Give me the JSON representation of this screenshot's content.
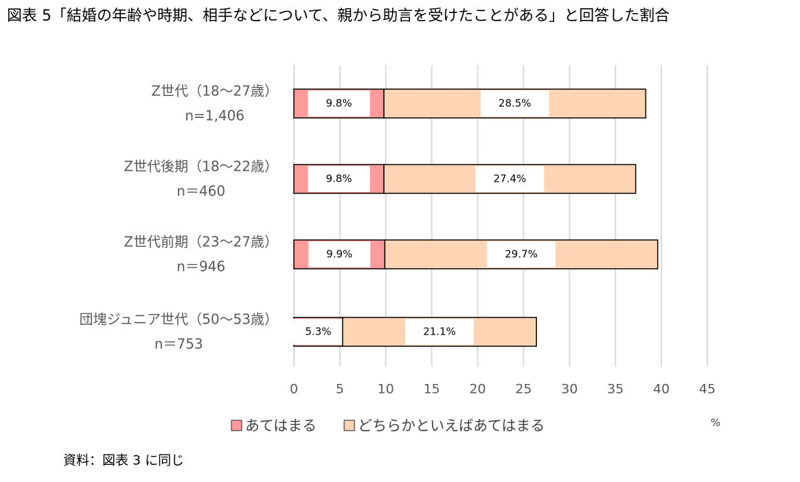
{
  "chart_data": {
    "type": "stacked-bar-horizontal",
    "title": "図表 5「結婚の年齢や時期、相手などについて、親から助言を受けたことがある」と回答した割合",
    "categories": [
      "Z世代（18～27歳）",
      "Z世代後期（18～22歳）",
      "Z世代前期（23～27歳）",
      "団塊ジュニア世代（50～53歳）"
    ],
    "sample_sizes": [
      "n=1,406",
      "n＝460",
      "n＝946",
      "n＝753"
    ],
    "series": [
      {
        "name": "あてはまる",
        "color": "#ff9b9b",
        "values": [
          9.8,
          9.8,
          9.9,
          5.3
        ],
        "value_labels": [
          "9.8%",
          "9.8%",
          "9.9%",
          "5.3%"
        ]
      },
      {
        "name": "どちらかといえばあてはまる",
        "color": "#fdd5b4",
        "values": [
          28.5,
          27.4,
          29.7,
          21.1
        ],
        "value_labels": [
          "28.5%",
          "27.4%",
          "29.7%",
          "21.1%"
        ]
      }
    ],
    "xlim": [
      0,
      45
    ],
    "xticks": [
      0,
      5,
      10,
      15,
      20,
      25,
      30,
      35,
      40,
      45
    ],
    "unit_label": "%",
    "grid": true,
    "legend": "bottom",
    "source": "資料：図表 3 に同じ"
  }
}
